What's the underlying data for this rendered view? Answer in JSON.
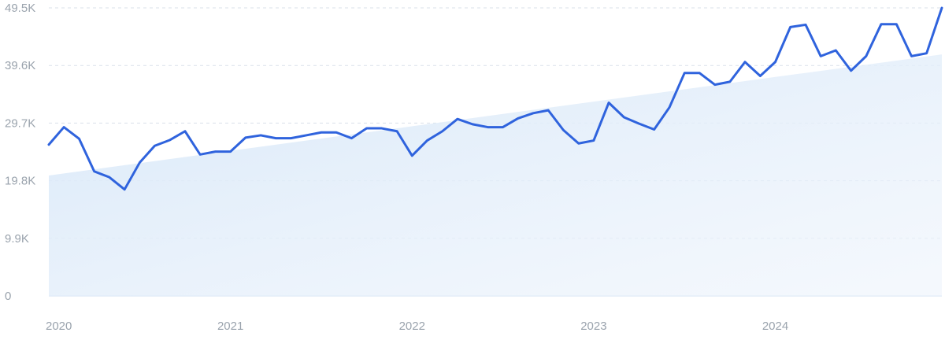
{
  "chart_data": {
    "type": "line",
    "title": "",
    "xlabel": "",
    "ylabel": "",
    "ylim": [
      0,
      49500
    ],
    "y_ticks": [
      0,
      9900,
      19800,
      29700,
      39600,
      49500
    ],
    "y_tick_labels": [
      "0",
      "9.9K",
      "19.8K",
      "29.7K",
      "39.6K",
      "49.5K"
    ],
    "x_tick_labels": [
      "2020",
      "2021",
      "2022",
      "2023",
      "2024"
    ],
    "x_tick_positions": [
      2020.0,
      2021.0,
      2022.0,
      2023.0,
      2024.0
    ],
    "xlim": [
      2020.0,
      2024.917
    ],
    "grid": true,
    "colors": {
      "line": "#2f63dd",
      "trend_fill": "#dbe9f8",
      "grid": "#d9e1ea",
      "tick_text": "#9aa3ad"
    },
    "trend": {
      "x": [
        2020.0,
        2024.917
      ],
      "y": [
        20700,
        41500
      ]
    },
    "series": [
      {
        "x": [
          2020.0,
          2020.083,
          2020.167,
          2020.25,
          2020.333,
          2020.417,
          2020.5,
          2020.583,
          2020.667,
          2020.75,
          2020.833,
          2020.917,
          2021.0,
          2021.083,
          2021.167,
          2021.25,
          2021.333,
          2021.417,
          2021.5,
          2021.583,
          2021.667,
          2021.75,
          2021.833,
          2021.917,
          2022.0,
          2022.083,
          2022.167,
          2022.25,
          2022.333,
          2022.417,
          2022.5,
          2022.583,
          2022.667,
          2022.75,
          2022.833,
          2022.917,
          2023.0,
          2023.083,
          2023.167,
          2023.25,
          2023.333,
          2023.417,
          2023.5,
          2023.583,
          2023.667,
          2023.75,
          2023.833,
          2023.917,
          2024.0,
          2024.083,
          2024.167,
          2024.25,
          2024.333,
          2024.417,
          2024.5,
          2024.583,
          2024.667,
          2024.75,
          2024.833,
          2024.917
        ],
        "y": [
          26000,
          29000,
          27000,
          21400,
          20400,
          18300,
          22900,
          25800,
          26800,
          28300,
          24300,
          24800,
          24800,
          27200,
          27600,
          27100,
          27100,
          27600,
          28100,
          28100,
          27100,
          28800,
          28800,
          28300,
          24100,
          26700,
          28300,
          30400,
          29500,
          29000,
          29000,
          30500,
          31400,
          31900,
          28500,
          26200,
          26700,
          33200,
          30700,
          29600,
          28600,
          32400,
          38300,
          38300,
          36300,
          36800,
          40200,
          37800,
          40200,
          46200,
          46600,
          41200,
          42200,
          38700,
          41200,
          46700,
          46700,
          41200,
          41700,
          49500
        ]
      }
    ]
  }
}
